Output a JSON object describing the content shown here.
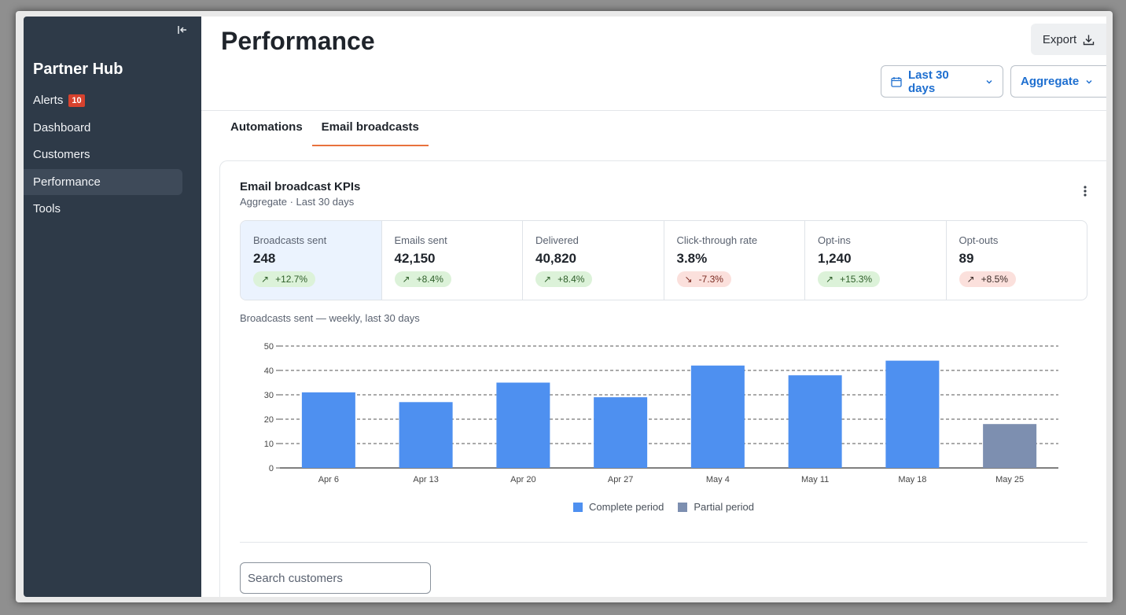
{
  "sidebar": {
    "brand": "Partner Hub",
    "collapse_icon": "collapse-left-icon",
    "items": [
      {
        "label": "Alerts",
        "badge": "10"
      },
      {
        "label": "Dashboard"
      },
      {
        "label": "Customers"
      },
      {
        "label": "Performance",
        "active": true
      },
      {
        "label": "Tools"
      }
    ]
  },
  "header": {
    "title": "Performance",
    "export_label": "Export",
    "date_range": "Last 30 days",
    "mode": "Aggregate"
  },
  "tabs": [
    {
      "label": "Automations"
    },
    {
      "label": "Email broadcasts",
      "active": true
    }
  ],
  "card": {
    "title": "Email broadcast KPIs",
    "subtitle": "Aggregate · Last 30 days",
    "kpis": [
      {
        "label": "Broadcasts sent",
        "value": "248",
        "delta": "+12.7%",
        "trend": "up",
        "arrow": "↗"
      },
      {
        "label": "Emails sent",
        "value": "42,150",
        "delta": "+8.4%",
        "trend": "up",
        "arrow": "↗"
      },
      {
        "label": "Delivered",
        "value": "40,820",
        "delta": "+8.4%",
        "trend": "up",
        "arrow": "↗"
      },
      {
        "label": "Click-through rate",
        "value": "3.8%",
        "delta": "-7.3%",
        "trend": "down",
        "arrow": "↘"
      },
      {
        "label": "Opt-ins",
        "value": "1,240",
        "delta": "+15.3%",
        "trend": "up",
        "arrow": "↗"
      },
      {
        "label": "Opt-outs",
        "value": "89",
        "delta": "+8.5%",
        "trend": "warn",
        "arrow": "↗"
      }
    ],
    "chart_caption": "Broadcasts sent — weekly, last 30 days",
    "search_placeholder": "Search customers"
  },
  "colors": {
    "complete": "#4e90f0",
    "partial": "#7d8fb0",
    "accent": "#e8713c",
    "sidebar": "#2e3a48"
  },
  "chart_data": {
    "type": "bar",
    "categories": [
      "Apr 6",
      "Apr 13",
      "Apr 20",
      "Apr 27",
      "May 4",
      "May 11",
      "May 18",
      "May 25"
    ],
    "values": [
      31,
      27,
      35,
      29,
      42,
      38,
      44,
      18
    ],
    "partial": [
      false,
      false,
      false,
      false,
      false,
      false,
      false,
      true
    ],
    "ylim": [
      0,
      50
    ],
    "yticks": [
      0,
      10,
      20,
      30,
      40,
      50
    ],
    "grid": true,
    "legend": [
      {
        "name": "Complete period",
        "color": "#4e90f0"
      },
      {
        "name": "Partial period",
        "color": "#7d8fb0"
      }
    ],
    "legend_position": "bottom"
  }
}
